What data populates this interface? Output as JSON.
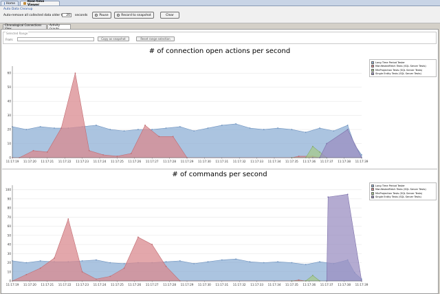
{
  "tabs": [
    {
      "label": "Home",
      "active": false,
      "icon": "home-icon"
    },
    {
      "label": "Real-time Viewer",
      "active": true,
      "icon": "viewer-icon"
    }
  ],
  "toolbar": {
    "auto_cleanup_label": "Auto Data Cleanup",
    "auto_remove_prefix": "Auto-remove all collected data older than",
    "auto_remove_value": "20",
    "auto_remove_suffix": "seconds",
    "pause_label": "Pause",
    "record_label": "Record to snapshot",
    "clear_label": "Clear"
  },
  "view_tabs": [
    {
      "label": "Chronological Connections View",
      "active": false
    },
    {
      "label": "Activity Graphs",
      "active": true
    }
  ],
  "range": {
    "group_label": "Selected Range",
    "from_label": "From:",
    "from_value": "",
    "copy_button": "Copy as snapshot",
    "reset_button": "Reset range selection"
  },
  "colors": {
    "series": [
      "#8fb0d6",
      "#d98a8f",
      "#a6c98c",
      "#9b8fc2"
    ],
    "series_stroke": [
      "#6f93bf",
      "#c06a70",
      "#83aa6a",
      "#7a6ea8"
    ]
  },
  "chart_data": [
    {
      "type": "area",
      "title": "# of connection open actions per second",
      "xlabel": "",
      "ylabel": "",
      "ylim": [
        0,
        65
      ],
      "yticks": [
        "0",
        "10",
        "20",
        "30",
        "40",
        "50",
        "60"
      ],
      "ytick_values": [
        0,
        10,
        20,
        30,
        40,
        50,
        60
      ],
      "categories": [
        "11:17:19",
        "11:17:20",
        "11:17:21",
        "11:17:22",
        "11:17:23",
        "11:17:24",
        "11:17:25",
        "11:17:26",
        "11:17:27",
        "11:17:28",
        "11:17:29",
        "11:17:30",
        "11:17:31",
        "11:17:32",
        "11:17:33",
        "11:17:34",
        "11:17:35",
        "11:17:36",
        "11:17:37",
        "11:17:38",
        "11:17:39"
      ],
      "x_steps": 40,
      "grid": true,
      "legend_position": "right",
      "series": [
        {
          "name": "Long Time Period Tester",
          "points": [
            [
              0,
              22
            ],
            [
              2,
              20
            ],
            [
              4,
              22
            ],
            [
              6,
              21
            ],
            [
              8,
              21
            ],
            [
              10,
              22
            ],
            [
              12,
              23
            ],
            [
              14,
              20
            ],
            [
              16,
              19
            ],
            [
              18,
              20
            ],
            [
              20,
              20
            ],
            [
              22,
              21
            ],
            [
              24,
              22
            ],
            [
              26,
              19
            ],
            [
              28,
              21
            ],
            [
              30,
              23
            ],
            [
              32,
              24
            ],
            [
              34,
              21
            ],
            [
              36,
              20
            ],
            [
              38,
              21
            ],
            [
              40,
              20
            ],
            [
              42,
              18
            ],
            [
              44,
              21
            ],
            [
              46,
              19
            ],
            [
              48,
              23
            ],
            [
              49,
              9
            ],
            [
              50,
              2
            ]
          ]
        },
        {
          "name": "ManifestedFetch Tests (SQL Server Tests)",
          "points": [
            [
              0,
              0
            ],
            [
              1,
              0
            ],
            [
              3,
              5
            ],
            [
              5,
              4
            ],
            [
              7,
              21
            ],
            [
              9,
              60
            ],
            [
              11,
              5
            ],
            [
              13,
              2
            ],
            [
              15,
              1
            ],
            [
              17,
              3
            ],
            [
              19,
              23
            ],
            [
              21,
              15
            ],
            [
              23,
              15
            ],
            [
              25,
              0
            ],
            [
              40,
              0
            ],
            [
              41,
              1
            ],
            [
              43,
              1
            ],
            [
              44,
              0
            ]
          ]
        },
        {
          "name": "MinProjection Tests (SQL Server Tests)",
          "points": [
            [
              40,
              0
            ],
            [
              42,
              0
            ],
            [
              43,
              8
            ],
            [
              44,
              4
            ],
            [
              45,
              0
            ]
          ]
        },
        {
          "name": "Single Entity Tests (SQL Server Tests)",
          "points": [
            [
              43,
              0
            ],
            [
              44,
              0
            ],
            [
              45,
              10
            ],
            [
              48,
              20
            ],
            [
              50,
              0
            ]
          ]
        }
      ]
    },
    {
      "type": "area",
      "title": "# of commands per second",
      "xlabel": "",
      "ylabel": "",
      "ylim": [
        0,
        105
      ],
      "yticks": [
        "0",
        "10",
        "20",
        "30",
        "40",
        "50",
        "60",
        "70",
        "80",
        "90",
        "100"
      ],
      "ytick_values": [
        0,
        10,
        20,
        30,
        40,
        50,
        60,
        70,
        80,
        90,
        100
      ],
      "categories": [
        "11:17:19",
        "11:17:20",
        "11:17:21",
        "11:17:22",
        "11:17:23",
        "11:17:24",
        "11:17:25",
        "11:17:26",
        "11:17:27",
        "11:17:28",
        "11:17:29",
        "11:17:30",
        "11:17:31",
        "11:17:32",
        "11:17:33",
        "11:17:34",
        "11:17:35",
        "11:17:36",
        "11:17:37",
        "11:17:38",
        "11:17:39"
      ],
      "x_steps": 40,
      "grid": true,
      "legend_position": "right",
      "series": [
        {
          "name": "Long Time Period Tester",
          "points": [
            [
              0,
              22
            ],
            [
              2,
              20
            ],
            [
              4,
              22
            ],
            [
              6,
              21
            ],
            [
              8,
              21
            ],
            [
              10,
              22
            ],
            [
              12,
              23
            ],
            [
              14,
              20
            ],
            [
              16,
              19
            ],
            [
              18,
              20
            ],
            [
              20,
              20
            ],
            [
              22,
              21
            ],
            [
              24,
              22
            ],
            [
              26,
              19
            ],
            [
              28,
              21
            ],
            [
              30,
              23
            ],
            [
              32,
              24
            ],
            [
              34,
              21
            ],
            [
              36,
              20
            ],
            [
              38,
              21
            ],
            [
              40,
              20
            ],
            [
              42,
              18
            ],
            [
              44,
              21
            ],
            [
              46,
              19
            ],
            [
              48,
              23
            ],
            [
              49,
              9
            ],
            [
              50,
              2
            ]
          ]
        },
        {
          "name": "ManifestedFetch Tests (SQL Server Tests)",
          "points": [
            [
              0,
              0
            ],
            [
              2,
              7
            ],
            [
              4,
              14
            ],
            [
              6,
              25
            ],
            [
              8,
              68
            ],
            [
              10,
              10
            ],
            [
              12,
              2
            ],
            [
              14,
              5
            ],
            [
              16,
              14
            ],
            [
              18,
              48
            ],
            [
              20,
              40
            ],
            [
              22,
              16
            ],
            [
              24,
              0
            ],
            [
              40,
              0
            ],
            [
              41,
              1
            ],
            [
              42,
              0
            ]
          ]
        },
        {
          "name": "MinProjection Tests (SQL Server Tests)",
          "points": [
            [
              40,
              0
            ],
            [
              42,
              0
            ],
            [
              43,
              6
            ],
            [
              44,
              0
            ]
          ]
        },
        {
          "name": "Single Entity Tests (SQL Server Tests)",
          "points": [
            [
              45,
              0
            ],
            [
              45.2,
              92
            ],
            [
              48,
              95
            ],
            [
              50,
              0
            ]
          ]
        }
      ]
    }
  ]
}
